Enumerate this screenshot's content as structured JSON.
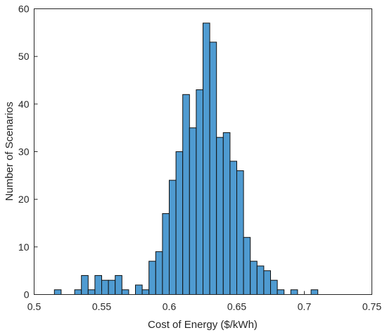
{
  "chart_data": {
    "type": "bar",
    "subtype": "histogram",
    "xlabel": "Cost of Energy ($/kWh)",
    "ylabel": "Number of Scenarios",
    "xlim": [
      0.5,
      0.75
    ],
    "ylim": [
      0,
      60
    ],
    "xticks": [
      "0.5",
      "0.55",
      "0.6",
      "0.65",
      "0.7",
      "0.75"
    ],
    "yticks": [
      "0",
      "10",
      "20",
      "30",
      "40",
      "50",
      "60"
    ],
    "grid": false,
    "bin_width": 0.005,
    "bin_start": 0.515,
    "counts": [
      1,
      0,
      0,
      1,
      4,
      1,
      4,
      3,
      3,
      4,
      1,
      0,
      2,
      1,
      7,
      9,
      17,
      24,
      30,
      42,
      35,
      43,
      57,
      53,
      33,
      34,
      28,
      26,
      12,
      7,
      6,
      5,
      3,
      1,
      0,
      1,
      0,
      0,
      1
    ],
    "colors": {
      "bar_fill": "#4f9bd1",
      "bar_edge": "#111111",
      "axis": "#262626"
    }
  }
}
